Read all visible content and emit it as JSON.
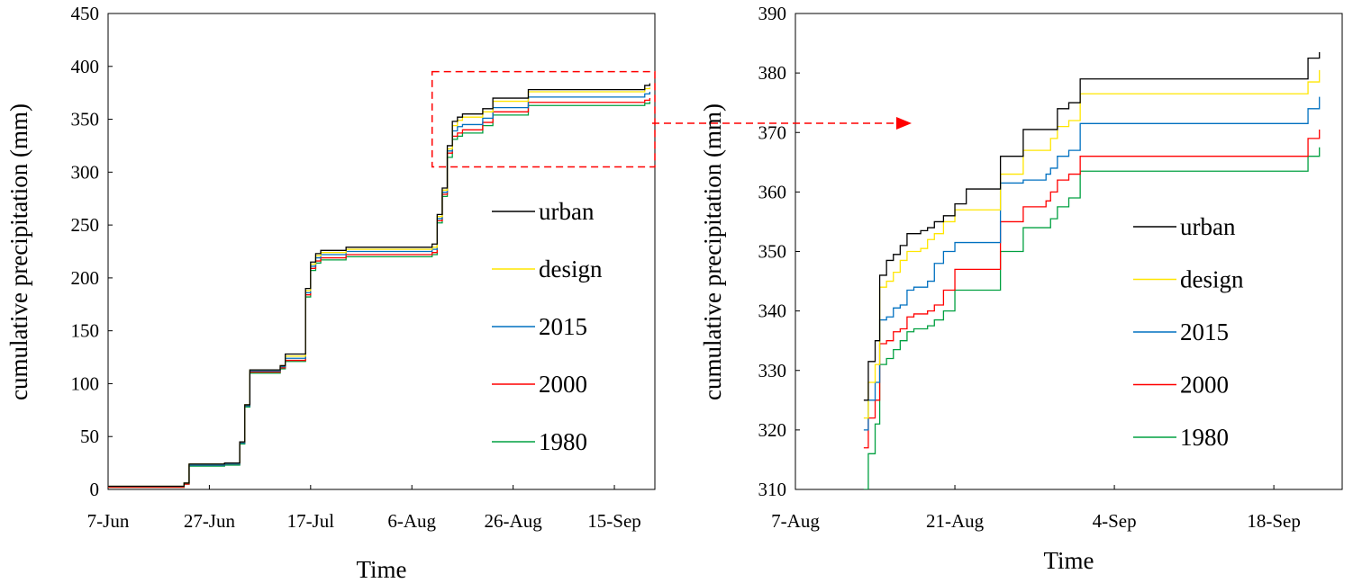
{
  "colors": {
    "urban": "#000000",
    "design": "#ffe600",
    "2015": "#0070c0",
    "2000": "#ff0000",
    "1980": "#00a040",
    "zoom_box": "#ff0000"
  },
  "chart_data": [
    {
      "type": "line",
      "xlabel": "Time",
      "ylabel": "cumulative  precipitation (mm)",
      "x_unit": "day of year (Jun 7 = day 0)",
      "xlim_dates": [
        "7-Jun",
        "23-Sep"
      ],
      "x_ticks": [
        "7-Jun",
        "27-Jun",
        "17-Jul",
        "6-Aug",
        "26-Aug",
        "15-Sep"
      ],
      "ylim": [
        0,
        450
      ],
      "y_ticks": [
        "0",
        "50",
        "100",
        "150",
        "200",
        "250",
        "300",
        "350",
        "400",
        "450"
      ],
      "legend": [
        "urban",
        "design",
        "2015",
        "2000",
        "1980"
      ],
      "legend_position": "right",
      "series": [
        {
          "name": "urban",
          "x": [
            "7-Jun",
            "20-Jun",
            "22-Jun",
            "23-Jun",
            "30-Jun",
            "3-Jul",
            "4-Jul",
            "5-Jul",
            "11-Jul",
            "12-Jul",
            "16-Jul",
            "17-Jul",
            "18-Jul",
            "19-Jul",
            "24-Jul",
            "10-Aug",
            "11-Aug",
            "12-Aug",
            "13-Aug",
            "14-Aug",
            "15-Aug",
            "16-Aug",
            "20-Aug",
            "22-Aug",
            "29-Aug",
            "21-Sep",
            "22-Sep"
          ],
          "y": [
            3,
            3,
            6,
            24,
            25,
            45,
            80,
            113,
            117,
            128,
            190,
            215,
            223,
            226,
            229,
            232,
            260,
            285,
            325,
            348,
            352,
            355,
            360,
            370,
            378,
            382,
            384
          ]
        },
        {
          "name": "design",
          "x": [
            "7-Jun",
            "20-Jun",
            "22-Jun",
            "23-Jun",
            "30-Jun",
            "3-Jul",
            "4-Jul",
            "5-Jul",
            "11-Jul",
            "12-Jul",
            "16-Jul",
            "17-Jul",
            "18-Jul",
            "19-Jul",
            "24-Jul",
            "10-Aug",
            "11-Aug",
            "12-Aug",
            "13-Aug",
            "14-Aug",
            "15-Aug",
            "16-Aug",
            "20-Aug",
            "22-Aug",
            "29-Aug",
            "21-Sep",
            "22-Sep"
          ],
          "y": [
            3,
            3,
            6,
            24,
            25,
            45,
            80,
            113,
            117,
            126,
            188,
            213,
            221,
            224,
            227,
            229,
            258,
            283,
            322,
            344,
            349,
            352,
            357,
            367,
            376,
            379,
            380
          ]
        },
        {
          "name": "2015",
          "x": [
            "7-Jun",
            "20-Jun",
            "22-Jun",
            "23-Jun",
            "30-Jun",
            "3-Jul",
            "4-Jul",
            "5-Jul",
            "11-Jul",
            "12-Jul",
            "16-Jul",
            "17-Jul",
            "18-Jul",
            "19-Jul",
            "24-Jul",
            "10-Aug",
            "11-Aug",
            "12-Aug",
            "13-Aug",
            "14-Aug",
            "15-Aug",
            "16-Aug",
            "20-Aug",
            "22-Aug",
            "29-Aug",
            "21-Sep",
            "22-Sep"
          ],
          "y": [
            3,
            3,
            6,
            23,
            24,
            44,
            79,
            112,
            116,
            124,
            186,
            211,
            219,
            222,
            225,
            227,
            256,
            281,
            320,
            339,
            343,
            345,
            351,
            361,
            371,
            374,
            376
          ]
        },
        {
          "name": "2000",
          "x": [
            "7-Jun",
            "20-Jun",
            "22-Jun",
            "23-Jun",
            "30-Jun",
            "3-Jul",
            "4-Jul",
            "5-Jul",
            "11-Jul",
            "12-Jul",
            "16-Jul",
            "17-Jul",
            "18-Jul",
            "19-Jul",
            "24-Jul",
            "10-Aug",
            "11-Aug",
            "12-Aug",
            "13-Aug",
            "14-Aug",
            "15-Aug",
            "16-Aug",
            "20-Aug",
            "22-Aug",
            "29-Aug",
            "21-Sep",
            "22-Sep"
          ],
          "y": [
            2,
            2,
            5,
            23,
            24,
            44,
            79,
            111,
            115,
            122,
            184,
            209,
            216,
            219,
            222,
            224,
            254,
            279,
            318,
            334,
            337,
            340,
            347,
            357,
            366,
            368,
            370
          ]
        },
        {
          "name": "1980",
          "x": [
            "7-Jun",
            "20-Jun",
            "22-Jun",
            "23-Jun",
            "30-Jun",
            "3-Jul",
            "4-Jul",
            "5-Jul",
            "11-Jul",
            "12-Jul",
            "16-Jul",
            "17-Jul",
            "18-Jul",
            "19-Jul",
            "24-Jul",
            "10-Aug",
            "11-Aug",
            "12-Aug",
            "13-Aug",
            "14-Aug",
            "15-Aug",
            "16-Aug",
            "20-Aug",
            "22-Aug",
            "29-Aug",
            "21-Sep",
            "22-Sep"
          ],
          "y": [
            2,
            2,
            5,
            22,
            23,
            43,
            78,
            110,
            114,
            121,
            182,
            207,
            214,
            217,
            220,
            222,
            252,
            277,
            314,
            331,
            334,
            337,
            344,
            354,
            363,
            365,
            367
          ]
        }
      ],
      "zoom_region": {
        "x": [
          "10-Aug",
          "23-Sep"
        ],
        "y": [
          305,
          395
        ]
      }
    },
    {
      "type": "line",
      "xlabel": "Time",
      "ylabel": "cumulative  precipitation (mm)",
      "xlim_dates": [
        "7-Aug",
        "24-Sep"
      ],
      "x_ticks": [
        "7-Aug",
        "21-Aug",
        "4-Sep",
        "18-Sep"
      ],
      "ylim": [
        310,
        390
      ],
      "y_ticks": [
        "310",
        "320",
        "330",
        "340",
        "350",
        "360",
        "370",
        "380",
        "390"
      ],
      "legend": [
        "urban",
        "design",
        "2015",
        "2000",
        "1980"
      ],
      "legend_position": "right",
      "series": [
        {
          "name": "urban",
          "x": [
            "13.0-Aug",
            "13.4-Aug",
            "14.0-Aug",
            "14.4-Aug",
            "15.0-Aug",
            "15.6-Aug",
            "16.2-Aug",
            "16.8-Aug",
            "17.4-Aug",
            "18.0-Aug",
            "18.6-Aug",
            "19.2-Aug",
            "20.0-Aug",
            "21.0-Aug",
            "22.0-Aug",
            "23.0-Aug",
            "25.0-Aug",
            "27.0-Aug",
            "28.0-Aug",
            "29.0-Aug",
            "29.4-Aug",
            "30.0-Aug",
            "31.0-Aug",
            "1.0-Sep",
            "20.0-Sep",
            "21.0-Sep",
            "22.0-Sep"
          ],
          "y": [
            325,
            331.5,
            335,
            346,
            348.5,
            349.5,
            351,
            353,
            353,
            353.5,
            354,
            355,
            356,
            358,
            360.5,
            360.5,
            366,
            370.5,
            370.5,
            370.5,
            370.5,
            374,
            375,
            379,
            379,
            382.5,
            383.5
          ]
        },
        {
          "name": "design",
          "x": [
            "13.0-Aug",
            "13.4-Aug",
            "14.0-Aug",
            "14.4-Aug",
            "15.0-Aug",
            "15.6-Aug",
            "16.2-Aug",
            "16.8-Aug",
            "17.4-Aug",
            "18.0-Aug",
            "18.6-Aug",
            "19.2-Aug",
            "20.0-Aug",
            "21.0-Aug",
            "22.0-Aug",
            "23.0-Aug",
            "25.0-Aug",
            "27.0-Aug",
            "28.0-Aug",
            "29.0-Aug",
            "29.4-Aug",
            "30.0-Aug",
            "31.0-Aug",
            "1.0-Sep",
            "20.0-Sep",
            "21.0-Sep",
            "22.0-Sep"
          ],
          "y": [
            322,
            328,
            331,
            344,
            345,
            346.5,
            348.5,
            350,
            350,
            350.5,
            352,
            353,
            355,
            357,
            357,
            357,
            363,
            367,
            367,
            367,
            369,
            371,
            372,
            376.5,
            376.5,
            378.5,
            380.5
          ]
        },
        {
          "name": "2015",
          "x": [
            "13.0-Aug",
            "13.4-Aug",
            "14.0-Aug",
            "14.4-Aug",
            "15.0-Aug",
            "15.6-Aug",
            "16.2-Aug",
            "16.8-Aug",
            "17.4-Aug",
            "18.0-Aug",
            "18.6-Aug",
            "19.2-Aug",
            "20.0-Aug",
            "21.0-Aug",
            "22.0-Aug",
            "23.0-Aug",
            "25.0-Aug",
            "27.0-Aug",
            "28.0-Aug",
            "29.0-Aug",
            "29.4-Aug",
            "30.0-Aug",
            "31.0-Aug",
            "1.0-Sep",
            "20.0-Sep",
            "21.0-Sep",
            "22.0-Sep"
          ],
          "y": [
            320,
            325,
            328,
            338.5,
            339,
            340.5,
            341,
            343.5,
            344,
            344,
            345,
            348,
            350,
            351.5,
            351.5,
            351.5,
            361.5,
            362,
            362,
            363,
            364,
            366,
            367,
            371.5,
            371.5,
            374,
            376
          ]
        },
        {
          "name": "2000",
          "x": [
            "13.0-Aug",
            "13.4-Aug",
            "14.0-Aug",
            "14.4-Aug",
            "15.0-Aug",
            "15.6-Aug",
            "16.2-Aug",
            "16.8-Aug",
            "17.4-Aug",
            "18.0-Aug",
            "18.6-Aug",
            "19.2-Aug",
            "20.0-Aug",
            "21.0-Aug",
            "22.0-Aug",
            "23.0-Aug",
            "25.0-Aug",
            "27.0-Aug",
            "28.0-Aug",
            "29.0-Aug",
            "29.4-Aug",
            "30.0-Aug",
            "31.0-Aug",
            "1.0-Sep",
            "20.0-Sep",
            "21.0-Sep",
            "22.0-Sep"
          ],
          "y": [
            317,
            322,
            325,
            334.5,
            335,
            336.5,
            337,
            339,
            339.5,
            339.5,
            340,
            341,
            343.5,
            347,
            347,
            347,
            355,
            357.5,
            357.5,
            358.5,
            360,
            362,
            363,
            366,
            366,
            369,
            370.5
          ]
        },
        {
          "name": "1980",
          "x": [
            "13.0-Aug",
            "13.4-Aug",
            "14.0-Aug",
            "14.4-Aug",
            "15.0-Aug",
            "15.6-Aug",
            "16.2-Aug",
            "16.8-Aug",
            "17.4-Aug",
            "18.0-Aug",
            "18.6-Aug",
            "19.2-Aug",
            "20.0-Aug",
            "21.0-Aug",
            "22.0-Aug",
            "23.0-Aug",
            "25.0-Aug",
            "27.0-Aug",
            "28.0-Aug",
            "29.0-Aug",
            "29.4-Aug",
            "30.0-Aug",
            "31.0-Aug",
            "1.0-Sep",
            "20.0-Sep",
            "21.0-Sep",
            "22.0-Sep"
          ],
          "y": [
            310,
            316,
            321,
            331,
            332,
            333.5,
            335,
            336.5,
            337,
            337,
            337.5,
            338.5,
            340,
            343.5,
            343.5,
            343.5,
            350,
            354,
            354,
            354,
            355.5,
            357.5,
            359,
            363.5,
            363.5,
            366,
            367.5
          ]
        }
      ]
    }
  ]
}
